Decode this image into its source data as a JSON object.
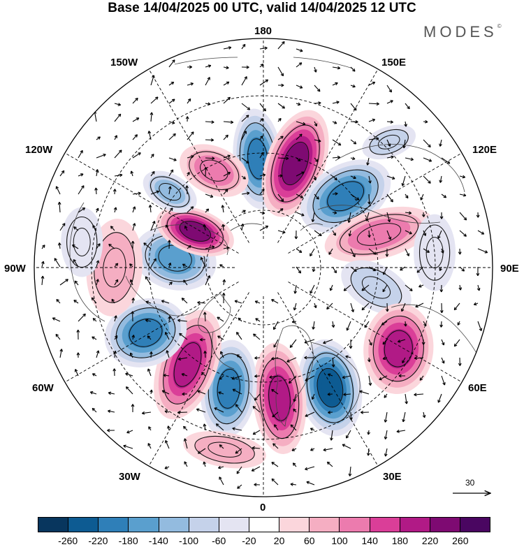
{
  "title": "Base 14/04/2025 00 UTC, valid 14/04/2025 12 UTC",
  "brand": "MODES",
  "brand_mark": "©",
  "longitude_labels": {
    "lon_180": "180",
    "lon_150e": "150E",
    "lon_120e": "120E",
    "lon_90e": "90E",
    "lon_60e": "60E",
    "lon_30e": "30E",
    "lon_0": "0",
    "lon_30w": "30W",
    "lon_60w": "60W",
    "lon_90w": "90W",
    "lon_120w": "120W",
    "lon_150w": "150W"
  },
  "vector_scale": {
    "label": "30"
  },
  "colorbar": {
    "labels": [
      "-260",
      "-220",
      "-180",
      "-140",
      "-100",
      "-60",
      "-20",
      "20",
      "60",
      "100",
      "140",
      "180",
      "220",
      "260"
    ],
    "colors": [
      "#08365e",
      "#0d5b92",
      "#2f7fb8",
      "#5a9fce",
      "#93bbdf",
      "#c5d2ea",
      "#e4e4f2",
      "#ffffff",
      "#fbd6dc",
      "#f5aec2",
      "#ec7bae",
      "#da3e98",
      "#b11a86",
      "#7e0a72",
      "#4a0661"
    ]
  },
  "anomaly_cells": [
    {
      "id": "c1",
      "value": -185,
      "lon": -177,
      "lat": 52,
      "rx": 35,
      "ry": 72,
      "angle": -5
    },
    {
      "id": "c2",
      "value": 235,
      "lon": 163,
      "lat": 52,
      "rx": 42,
      "ry": 80,
      "angle": 20
    },
    {
      "id": "c3",
      "value": -205,
      "lon": 131,
      "lat": 52,
      "rx": 70,
      "ry": 45,
      "angle": -30
    },
    {
      "id": "c4",
      "value": 135,
      "lon": 106,
      "lat": 48,
      "rx": 80,
      "ry": 35,
      "angle": -15
    },
    {
      "id": "c5",
      "value": -95,
      "lon": 80,
      "lat": 50,
      "rx": 55,
      "ry": 32,
      "angle": 30
    },
    {
      "id": "c6",
      "value": 195,
      "lon": 59,
      "lat": 35,
      "rx": 50,
      "ry": 65,
      "angle": 5
    },
    {
      "id": "c7",
      "value": -245,
      "lon": 29,
      "lat": 42,
      "rx": 45,
      "ry": 70,
      "angle": -10
    },
    {
      "id": "c8",
      "value": 205,
      "lon": 7,
      "lat": 44,
      "rx": 38,
      "ry": 80,
      "angle": -5
    },
    {
      "id": "c9",
      "value": -195,
      "lon": -16,
      "lat": 46,
      "rx": 40,
      "ry": 70,
      "angle": 5
    },
    {
      "id": "c10",
      "value": 215,
      "lon": -38,
      "lat": 47,
      "rx": 42,
      "ry": 82,
      "angle": 20
    },
    {
      "id": "c11",
      "value": -185,
      "lon": -61,
      "lat": 43,
      "rx": 60,
      "ry": 48,
      "angle": -20
    },
    {
      "id": "c12",
      "value": -165,
      "lon": -96,
      "lat": 59,
      "rx": 60,
      "ry": 45,
      "angle": 15
    },
    {
      "id": "c13",
      "value": 95,
      "lon": -90,
      "lat": 38,
      "rx": 40,
      "ry": 70,
      "angle": 5
    },
    {
      "id": "c14",
      "value": 225,
      "lon": -118,
      "lat": 63,
      "rx": 58,
      "ry": 32,
      "angle": 20
    },
    {
      "id": "c15",
      "value": -115,
      "lon": -129,
      "lat": 48,
      "rx": 42,
      "ry": 25,
      "angle": 30
    },
    {
      "id": "c16",
      "value": 115,
      "lon": -153,
      "lat": 52,
      "rx": 52,
      "ry": 34,
      "angle": 25
    },
    {
      "id": "c17",
      "value": -55,
      "lon": -98,
      "lat": 26,
      "rx": 30,
      "ry": 50,
      "angle": 0
    },
    {
      "id": "c18",
      "value": -55,
      "lon": 95,
      "lat": 30,
      "rx": 30,
      "ry": 55,
      "angle": 0
    },
    {
      "id": "c19",
      "value": 75,
      "lon": -12,
      "lat": 25,
      "rx": 60,
      "ry": 25,
      "angle": 10
    },
    {
      "id": "c20",
      "value": -75,
      "lon": 135,
      "lat": 28,
      "rx": 40,
      "ry": 22,
      "angle": -20
    }
  ]
}
